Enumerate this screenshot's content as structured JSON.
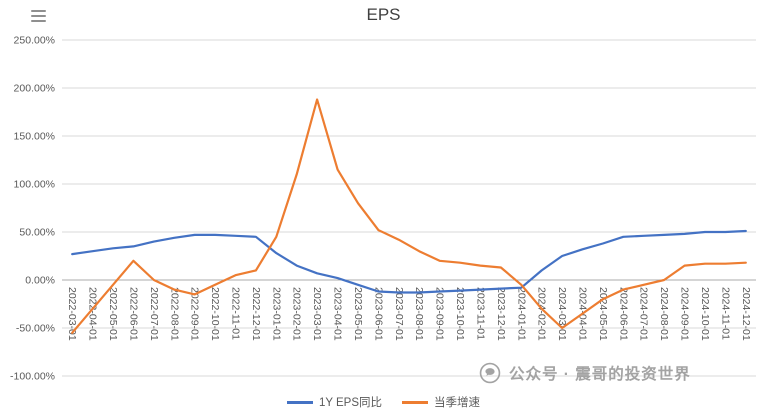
{
  "chart_data": {
    "type": "line",
    "title": "EPS",
    "xlabel": "",
    "ylabel": "",
    "categories": [
      "2022-03-01",
      "2022-04-01",
      "2022-05-01",
      "2022-06-01",
      "2022-07-01",
      "2022-08-01",
      "2022-09-01",
      "2022-10-01",
      "2022-11-01",
      "2022-12-01",
      "2023-01-01",
      "2023-02-01",
      "2023-03-01",
      "2023-04-01",
      "2023-05-01",
      "2023-06-01",
      "2023-07-01",
      "2023-08-01",
      "2023-09-01",
      "2023-10-01",
      "2023-11-01",
      "2023-12-01",
      "2024-01-01",
      "2024-02-01",
      "2024-03-01",
      "2024-04-01",
      "2024-05-01",
      "2024-06-01",
      "2024-07-01",
      "2024-08-01",
      "2024-09-01",
      "2024-10-01",
      "2024-11-01",
      "2024-12-01"
    ],
    "series": [
      {
        "name": "1Y EPS同比",
        "color": "#4472C4",
        "values": [
          27,
          30,
          33,
          35,
          40,
          44,
          47,
          47,
          46,
          45,
          28,
          15,
          7,
          2,
          -5,
          -12,
          -13,
          -13,
          -12,
          -11,
          -10,
          -9,
          -8,
          10,
          25,
          32,
          38,
          45,
          46,
          47,
          48,
          50,
          50,
          51
        ]
      },
      {
        "name": "当季增速",
        "color": "#ED7D31",
        "values": [
          -55,
          -30,
          -5,
          20,
          0,
          -10,
          -15,
          -5,
          5,
          10,
          45,
          110,
          188,
          115,
          80,
          52,
          42,
          30,
          20,
          18,
          15,
          13,
          -5,
          -30,
          -50,
          -35,
          -20,
          -10,
          -5,
          0,
          15,
          17,
          17,
          18
        ]
      }
    ],
    "ylim": [
      -100,
      250
    ],
    "y_ticks": [
      {
        "value": 250,
        "label": "250.00%"
      },
      {
        "value": 200,
        "label": "200.00%"
      },
      {
        "value": 150,
        "label": "150.00%"
      },
      {
        "value": 100,
        "label": "100.00%"
      },
      {
        "value": 50,
        "label": "50.00%"
      },
      {
        "value": 0,
        "label": "0.00%"
      },
      {
        "value": -50,
        "label": "-50.00%"
      },
      {
        "value": -100,
        "label": "-100.00%"
      }
    ],
    "grid": true,
    "legend_position": "bottom"
  },
  "watermark": {
    "text": "公众号 · 震哥的投资世界",
    "icon": "wechat-official-account-icon"
  },
  "icons": {
    "top_left": "menu-icon"
  }
}
